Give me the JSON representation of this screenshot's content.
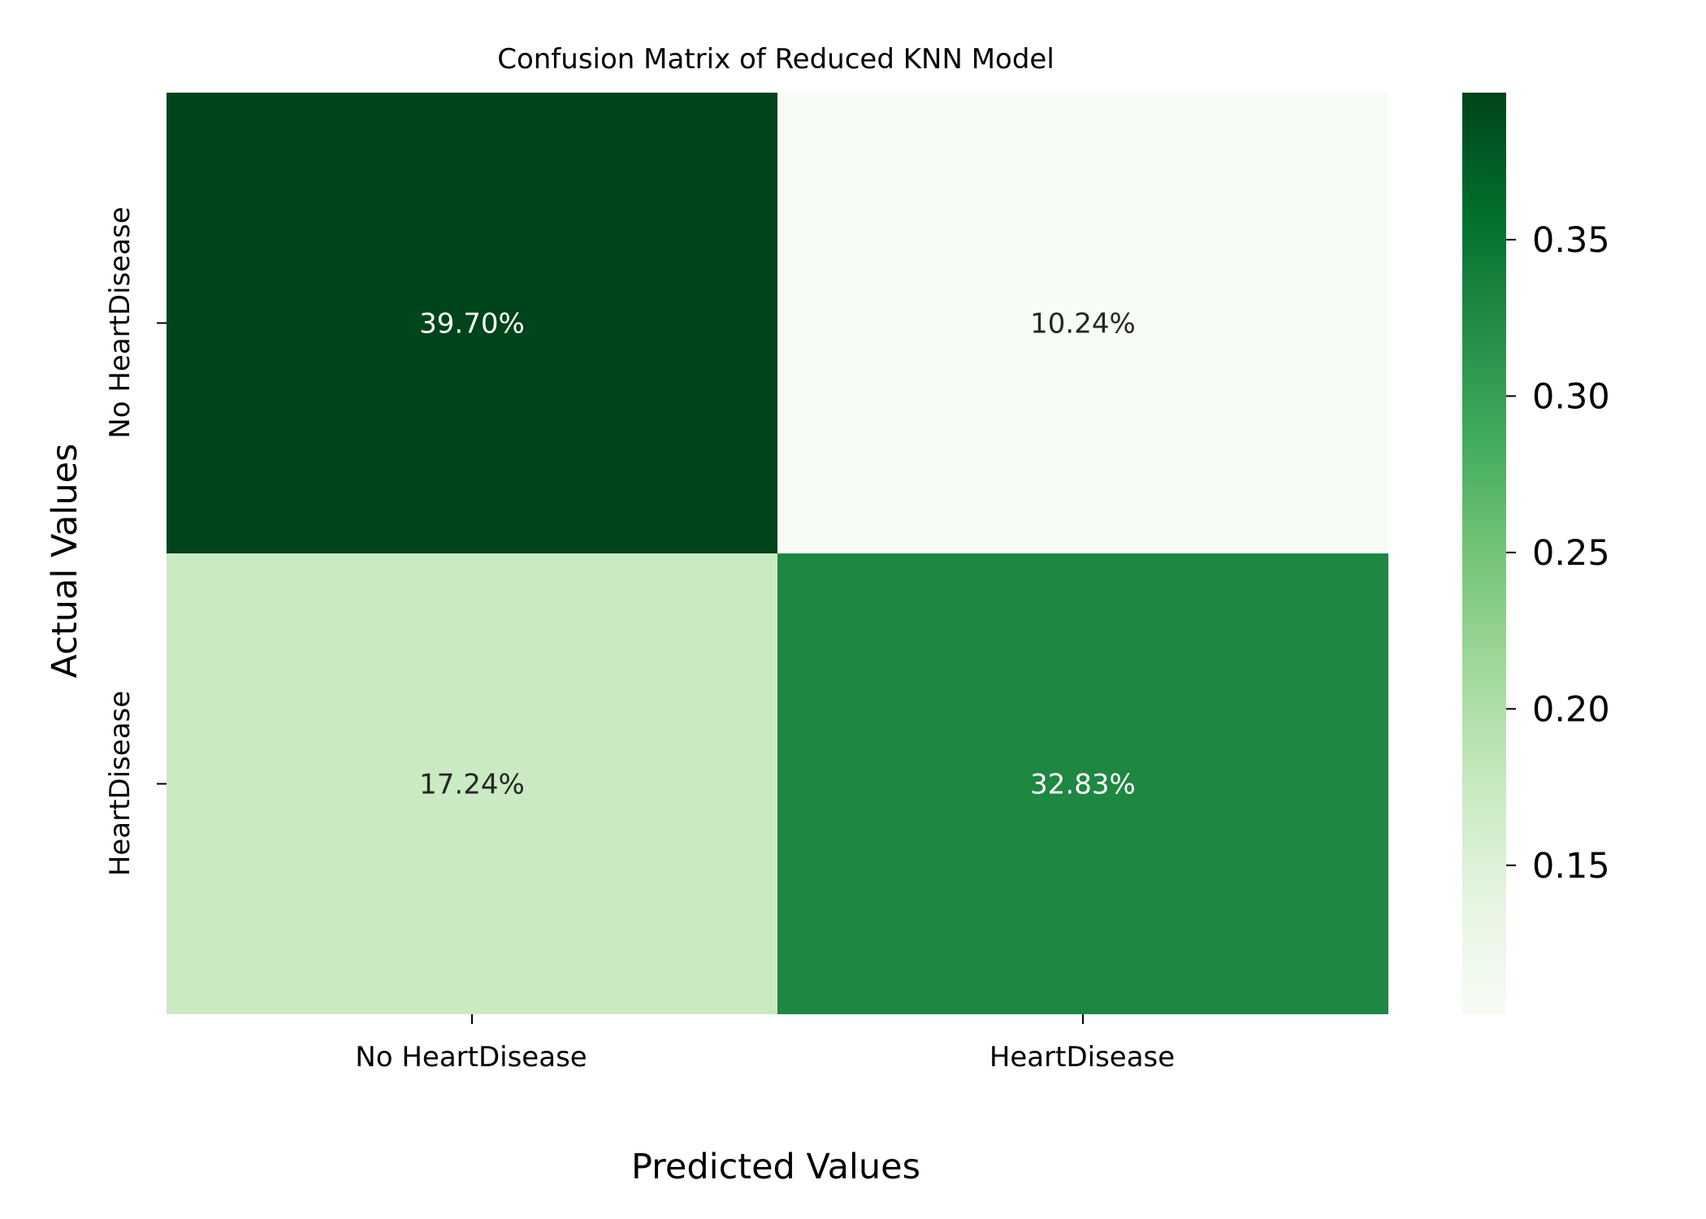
{
  "chart_data": {
    "type": "heatmap",
    "title": "Confusion Matrix of Reduced KNN Model",
    "xlabel": "Predicted Values",
    "ylabel": "Actual Values",
    "x_categories": [
      "No HeartDisease",
      "HeartDisease"
    ],
    "y_categories": [
      "No HeartDisease",
      "HeartDisease"
    ],
    "values": [
      [
        0.397,
        0.1024
      ],
      [
        0.1724,
        0.3283
      ]
    ],
    "cell_labels": [
      [
        "39.70%",
        "10.24%"
      ],
      [
        "17.24%",
        "32.83%"
      ]
    ],
    "colormap": "Greens",
    "colorbar": {
      "range": [
        0.1024,
        0.397
      ],
      "ticks": [
        0.15,
        0.2,
        0.25,
        0.3,
        0.35
      ],
      "tick_labels": [
        "0.15",
        "0.20",
        "0.25",
        "0.30",
        "0.35"
      ]
    },
    "colors": {
      "cell_light_text": "#ffffff",
      "cell_dark_text": "#262626",
      "axis": "#000000"
    }
  }
}
